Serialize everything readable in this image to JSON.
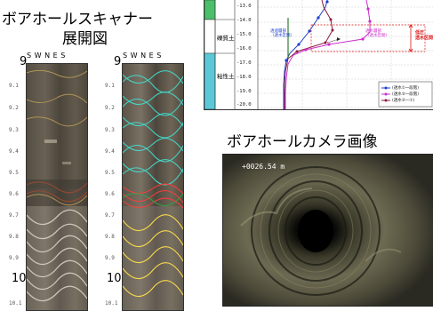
{
  "scanner": {
    "title_line1": "ボアホールスキャナー",
    "title_line2": "展開図",
    "compass": "S W N E S",
    "big_tick_top": "9",
    "big_tick_bottom": "10",
    "depth_labels": [
      "9.1",
      "9.2",
      "9.3",
      "9.4",
      "9.5",
      "9.6",
      "9.7",
      "9.8",
      "9.9",
      "10.1"
    ]
  },
  "log_chart": {
    "layers": [
      "礫質土",
      "粘性土"
    ],
    "y_ticks": [
      "-13.0",
      "-14.0",
      "-15.0",
      "-16.0",
      "-17.0",
      "-18.0",
      "-19.0",
      "-20.0"
    ],
    "annotation_red": "低圧\n透水区間",
    "annotation_pink": "透水層部\n（透水区間）",
    "annotation_blue": "透過層部\n（透水区間）",
    "legend": [
      "(透水①一段階)",
      "(透水②一段階)",
      "(透水②一①)"
    ],
    "colors": {
      "blue": "#1f3fd0",
      "magenta": "#cc2dcc",
      "darkred": "#8b1a3a",
      "red": "#e01010",
      "green": "#2e7d32"
    }
  },
  "camera": {
    "title": "ボアホールカメラ画像",
    "depth_readout": "+0026.54 m"
  }
}
